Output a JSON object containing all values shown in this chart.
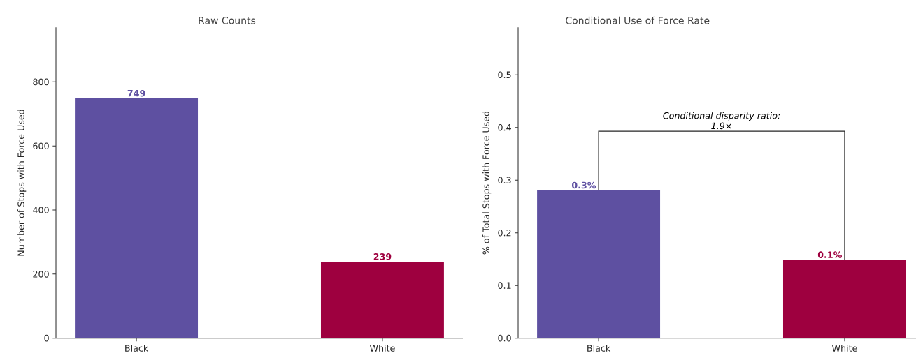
{
  "chart_data": [
    {
      "type": "bar",
      "title": "Raw Counts",
      "ylabel": "Number of Stops with Force Used",
      "categories": [
        "Black",
        "White"
      ],
      "values": [
        749,
        239
      ],
      "colors": [
        "#5e50a1",
        "#9e003f"
      ],
      "data_labels": true,
      "ylim": [
        0,
        970
      ],
      "yticks": [
        0,
        200,
        400,
        600,
        800
      ]
    },
    {
      "type": "bar",
      "title": "Conditional Use of Force Rate",
      "ylabel": "% of Total Stops with Force Used",
      "categories": [
        "Black",
        "White"
      ],
      "values": [
        0.281,
        0.149
      ],
      "colors": [
        "#5e50a1",
        "#9e003f"
      ],
      "value_labels": [
        "0.3%",
        "0.1%"
      ],
      "ylim": [
        0,
        0.59
      ],
      "yticks": [
        {
          "value": 0,
          "label": "0.0"
        },
        0.1,
        0.2,
        0.3,
        0.4,
        0.5
      ],
      "annotations": [
        "Conditional disparity ratio:",
        "1.9×"
      ]
    }
  ]
}
